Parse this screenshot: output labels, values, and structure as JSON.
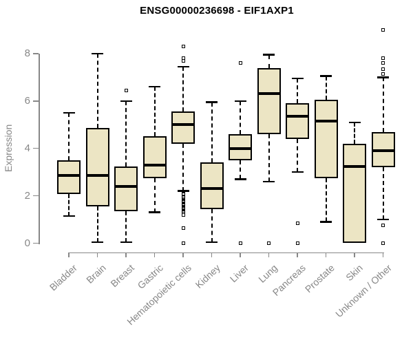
{
  "chart_data": {
    "type": "boxplot",
    "title": "ENSG00000236698 - EIF1AXP1",
    "xlabel": "",
    "ylabel": "Expression",
    "ylim": [
      0,
      8
    ],
    "yticks": [
      0,
      2,
      4,
      6,
      8
    ],
    "grid": false,
    "legend": "none",
    "box_fill_color": "#ece5c4",
    "box_stroke_color": "#000000",
    "axis_color": "#878787",
    "tick_label_color": "#878787",
    "title_color": "#000000",
    "categories": [
      "Bladder",
      "Brain",
      "Breast",
      "Gastric",
      "Hematopoietic cells",
      "Kidney",
      "Liver",
      "Lung",
      "Pancreas",
      "Prostate",
      "Skin",
      "Unknown / Other"
    ],
    "boxes": [
      {
        "label": "Bladder",
        "whisker_low": 1.15,
        "q1": 2.08,
        "median": 2.85,
        "q3": 3.5,
        "whisker_high": 5.5,
        "outliers": []
      },
      {
        "label": "Brain",
        "whisker_low": 0.05,
        "q1": 1.55,
        "median": 2.85,
        "q3": 4.85,
        "whisker_high": 8.0,
        "outliers": []
      },
      {
        "label": "Breast",
        "whisker_low": 0.05,
        "q1": 1.35,
        "median": 2.4,
        "q3": 3.25,
        "whisker_high": 6.0,
        "outliers": [
          6.45
        ]
      },
      {
        "label": "Gastric",
        "whisker_low": 1.3,
        "q1": 2.75,
        "median": 3.3,
        "q3": 4.5,
        "whisker_high": 6.6,
        "outliers": []
      },
      {
        "label": "Hematopoietic cells",
        "whisker_low": 2.2,
        "q1": 4.2,
        "median": 5.0,
        "q3": 5.55,
        "whisker_high": 7.45,
        "outliers": [
          8.3,
          7.8,
          7.7,
          2.1,
          2.05,
          1.95,
          1.9,
          1.8,
          1.75,
          1.65,
          1.6,
          1.5,
          1.45,
          1.35,
          1.3,
          1.2,
          0.65,
          0.0
        ]
      },
      {
        "label": "Kidney",
        "whisker_low": 0.05,
        "q1": 1.45,
        "median": 2.3,
        "q3": 3.4,
        "whisker_high": 5.95,
        "outliers": []
      },
      {
        "label": "Liver",
        "whisker_low": 2.7,
        "q1": 3.5,
        "median": 4.0,
        "q3": 4.6,
        "whisker_high": 6.0,
        "outliers": [
          7.6,
          0.0
        ]
      },
      {
        "label": "Lung",
        "whisker_low": 2.6,
        "q1": 4.6,
        "median": 6.3,
        "q3": 7.4,
        "whisker_high": 7.95,
        "outliers": [
          0.0
        ]
      },
      {
        "label": "Pancreas",
        "whisker_low": 3.0,
        "q1": 4.4,
        "median": 5.35,
        "q3": 5.9,
        "whisker_high": 6.95,
        "outliers": [
          0.85,
          0.0
        ]
      },
      {
        "label": "Prostate",
        "whisker_low": 0.9,
        "q1": 2.75,
        "median": 5.15,
        "q3": 6.05,
        "whisker_high": 7.05,
        "outliers": []
      },
      {
        "label": "Skin",
        "whisker_low": 0.0,
        "q1": 0.0,
        "median": 3.25,
        "q3": 4.2,
        "whisker_high": 5.1,
        "outliers": []
      },
      {
        "label": "Unknown / Other",
        "whisker_low": 1.0,
        "q1": 3.2,
        "median": 3.9,
        "q3": 4.7,
        "whisker_high": 7.0,
        "outliers": [
          9.0,
          7.8,
          7.6,
          7.35,
          7.15,
          0.75,
          0.0
        ]
      }
    ]
  }
}
